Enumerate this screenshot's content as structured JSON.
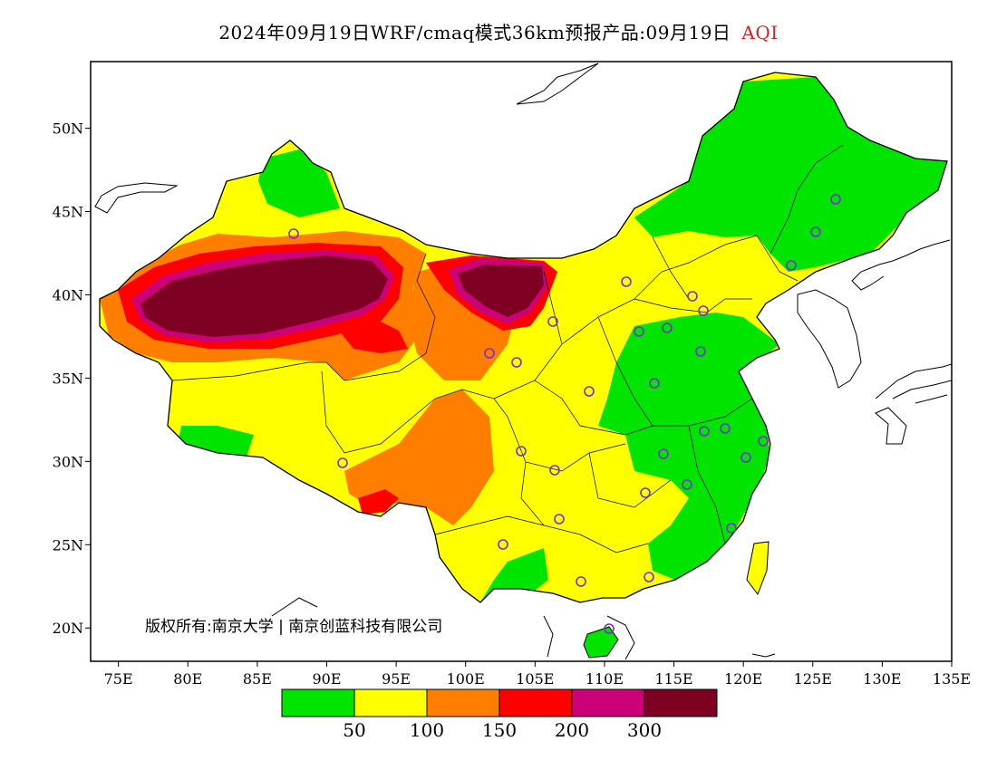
{
  "title": {
    "main": "2024年09月19日WRF/cmaq模式36km预报产品:09月19日",
    "variable": "AQI"
  },
  "copyright": "版权所有:南京大学 | 南京创蓝科技有限公司",
  "axes": {
    "lon_ticks": [
      "75E",
      "80E",
      "85E",
      "90E",
      "95E",
      "100E",
      "105E",
      "110E",
      "115E",
      "120E",
      "125E",
      "130E",
      "135E"
    ],
    "lat_ticks": [
      "50N",
      "45N",
      "40N",
      "35N",
      "30N",
      "25N",
      "20N"
    ],
    "lon_range": [
      73,
      135
    ],
    "lat_range": [
      18,
      54
    ]
  },
  "colorbar": {
    "colors": [
      "#00e400",
      "#ffff00",
      "#ff7e00",
      "#ff0000",
      "#cc0077",
      "#7e0023"
    ],
    "labels": [
      "50",
      "100",
      "150",
      "200",
      "300"
    ]
  },
  "map_style": {
    "outside_color": "#ffffff",
    "border_color": "#000000",
    "city_marker_color": "#7a2cd8"
  }
}
